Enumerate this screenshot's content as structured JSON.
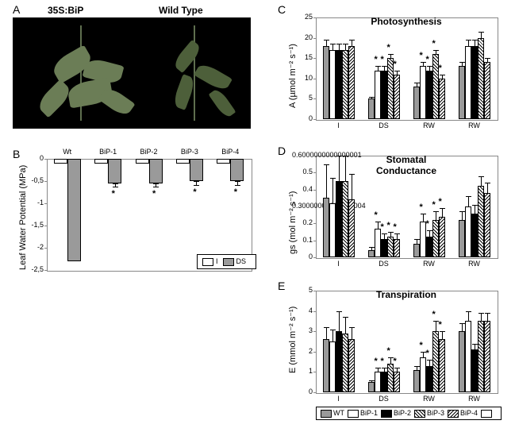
{
  "panel_labels": {
    "A": "A",
    "B": "B",
    "C": "C",
    "D": "D",
    "E": "E"
  },
  "panel_a": {
    "label_left": "35S:BiP",
    "label_right": "Wild Type"
  },
  "panel_b": {
    "ylabel": "Leaf Water Potential  (MPa)",
    "ymin": -2.5,
    "ymax": 0,
    "ystep": 0.5,
    "categories": [
      "Wt",
      "BiP-1",
      "BiP-2",
      "BiP-3",
      "BiP-4"
    ],
    "series": [
      {
        "name": "I",
        "fill": "#ffffff",
        "values": [
          -0.1,
          -0.1,
          -0.1,
          -0.1,
          -0.1
        ],
        "err": [
          0,
          0,
          0,
          0,
          0
        ],
        "stars": [
          false,
          false,
          false,
          false,
          false
        ]
      },
      {
        "name": "DS",
        "fill": "#9a9a9a",
        "values": [
          -2.3,
          -0.55,
          -0.55,
          -0.5,
          -0.5
        ],
        "err": [
          0,
          0.1,
          0.1,
          0.1,
          0.1
        ],
        "stars": [
          false,
          true,
          true,
          true,
          true
        ]
      }
    ],
    "legend": [
      "I",
      "DS"
    ]
  },
  "panel_c": {
    "title": "Photosynthesis",
    "ylabel": "A (µmol m⁻² s⁻¹)",
    "ymin": 0,
    "ymax": 25,
    "ystep": 5,
    "groups": [
      "I",
      "DS",
      "RW",
      "RW"
    ],
    "series": [
      "WT",
      "BiP-1",
      "BiP-2",
      "BiP-3",
      "BiP-4"
    ],
    "fills": [
      "#9a9a9a",
      "#ffffff",
      "#000000",
      "hatch",
      "hatch2"
    ],
    "values": [
      [
        18,
        17,
        17,
        17,
        18
      ],
      [
        5,
        12,
        12,
        15,
        11
      ],
      [
        8,
        13,
        12,
        16,
        10
      ],
      [
        13,
        18,
        18,
        20,
        14
      ]
    ],
    "err": [
      [
        1.5,
        1.5,
        1.5,
        1.5,
        1.5
      ],
      [
        0.5,
        1,
        1,
        1,
        1
      ],
      [
        1,
        1,
        1,
        1,
        1
      ],
      [
        1,
        1.5,
        1.5,
        1.5,
        1
      ]
    ],
    "stars": [
      [
        false,
        false,
        false,
        false,
        false
      ],
      [
        false,
        true,
        true,
        true,
        true
      ],
      [
        false,
        true,
        true,
        true,
        true
      ],
      [
        false,
        false,
        false,
        false,
        false
      ]
    ]
  },
  "panel_d": {
    "title": "Stomatal Conductance",
    "ylabel": "gs (mol m⁻² s⁻¹)",
    "ymin": 0,
    "ymax": 0.6,
    "ystep": 0.1,
    "groups": [
      "I",
      "DS",
      "RW",
      "RW"
    ],
    "series": [
      "WT",
      "BiP-1",
      "BiP-2",
      "BiP-3",
      "BiP-4"
    ],
    "fills": [
      "#9a9a9a",
      "#ffffff",
      "#000000",
      "hatch",
      "hatch2"
    ],
    "values": [
      [
        0.35,
        0.32,
        0.45,
        0.45,
        0.34
      ],
      [
        0.04,
        0.17,
        0.11,
        0.12,
        0.11
      ],
      [
        0.08,
        0.21,
        0.12,
        0.22,
        0.24
      ],
      [
        0.22,
        0.3,
        0.26,
        0.42,
        0.38
      ]
    ],
    "err": [
      [
        0.2,
        0.15,
        0.15,
        0.15,
        0.15
      ],
      [
        0.02,
        0.04,
        0.03,
        0.03,
        0.03
      ],
      [
        0.03,
        0.05,
        0.04,
        0.05,
        0.05
      ],
      [
        0.05,
        0.06,
        0.05,
        0.06,
        0.06
      ]
    ],
    "stars": [
      [
        false,
        false,
        false,
        false,
        false
      ],
      [
        false,
        true,
        true,
        true,
        true
      ],
      [
        false,
        true,
        true,
        true,
        true
      ],
      [
        false,
        false,
        false,
        false,
        false
      ]
    ]
  },
  "panel_e": {
    "title": "Transpiration",
    "ylabel": "E (mmol m⁻² s⁻¹)",
    "ymin": 0,
    "ymax": 5,
    "ystep": 1,
    "groups": [
      "I",
      "DS",
      "RW",
      "RW"
    ],
    "series": [
      "WT",
      "BiP-1",
      "BiP-2",
      "BiP-3",
      "BiP-4"
    ],
    "fills": [
      "#9a9a9a",
      "#ffffff",
      "#000000",
      "hatch",
      "hatch2"
    ],
    "values": [
      [
        2.6,
        2.5,
        3.0,
        2.9,
        2.6
      ],
      [
        0.5,
        1.0,
        1.0,
        1.4,
        1.0
      ],
      [
        1.1,
        1.7,
        1.3,
        3.0,
        2.6
      ],
      [
        3.0,
        3.5,
        2.1,
        3.5,
        3.5
      ]
    ],
    "err": [
      [
        0.6,
        0.6,
        1.0,
        0.8,
        0.6
      ],
      [
        0.1,
        0.2,
        0.2,
        0.3,
        0.2
      ],
      [
        0.2,
        0.3,
        0.3,
        0.5,
        0.4
      ],
      [
        0.4,
        0.5,
        0.3,
        0.4,
        0.4
      ]
    ],
    "stars": [
      [
        false,
        false,
        false,
        false,
        false
      ],
      [
        false,
        true,
        true,
        true,
        true
      ],
      [
        false,
        true,
        true,
        true,
        true
      ],
      [
        false,
        false,
        false,
        false,
        false
      ]
    ]
  },
  "legend_cde": [
    "WT",
    "BiP-1",
    "BiP-2",
    "BiP-3",
    "BiP-4",
    ""
  ],
  "legend_cde_fills": [
    "#9a9a9a",
    "#ffffff",
    "#000000",
    "hatch",
    "hatch2",
    "#ffffff"
  ]
}
